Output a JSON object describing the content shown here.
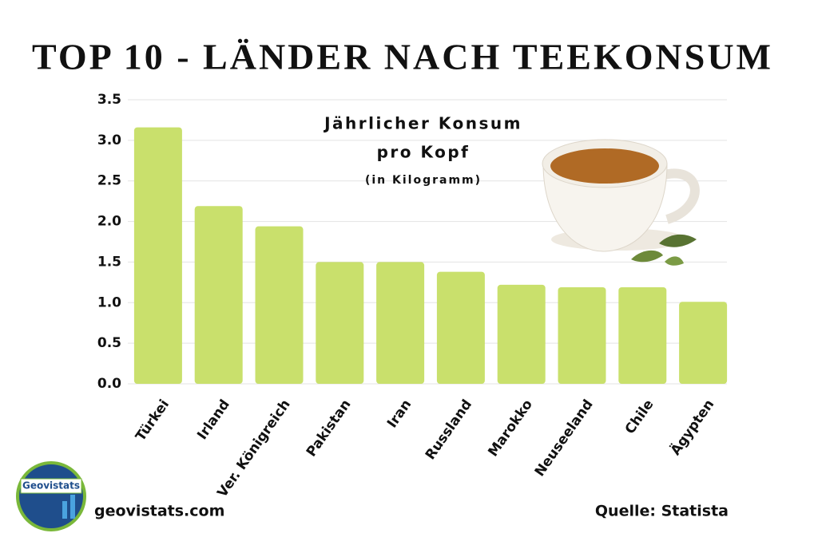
{
  "chart_data": {
    "type": "bar",
    "title": "TOP 10 - LÄNDER NACH TEEKONSUM",
    "subtitle_lines": [
      "Jährlicher Konsum",
      "pro Kopf"
    ],
    "unit_note": "(in Kilogramm)",
    "categories": [
      "Türkei",
      "Irland",
      "Ver. Königreich",
      "Pakistan",
      "Iran",
      "Russland",
      "Marokko",
      "Neuseeland",
      "Chile",
      "Ägypten"
    ],
    "values": [
      3.16,
      2.19,
      1.94,
      1.5,
      1.5,
      1.38,
      1.22,
      1.19,
      1.19,
      1.01
    ],
    "color": "#c9e06c",
    "ylim": [
      0,
      3.5
    ],
    "yticks": [
      {
        "value": 0,
        "label": "0.0"
      },
      0.5,
      {
        "value": 1,
        "label": "1.0"
      },
      1.5,
      {
        "value": 2,
        "label": "2.0"
      },
      2.5,
      {
        "value": 3,
        "label": "3.0"
      },
      3.5
    ],
    "grid": true,
    "logo_text": "Geovistats",
    "website": "geovistats.com",
    "source": "Quelle: Statista"
  }
}
